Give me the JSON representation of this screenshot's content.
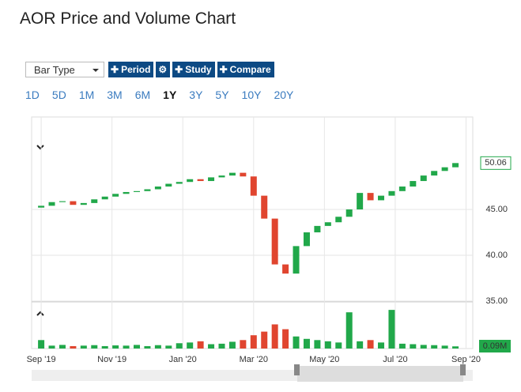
{
  "header": {
    "title": "AOR Price and Volume Chart"
  },
  "controls": {
    "bar_type": "Bar Type",
    "buttons": [
      "Period",
      "Study",
      "Compare"
    ],
    "ranges": [
      "1D",
      "5D",
      "1M",
      "3M",
      "6M",
      "1Y",
      "3Y",
      "5Y",
      "10Y",
      "20Y"
    ],
    "active_range_index": 5
  },
  "chart_data": {
    "type": "candlestick",
    "x": [
      0,
      0.3,
      0.6,
      0.9,
      1.2,
      1.5,
      1.8,
      2.1,
      2.4,
      2.7,
      3.0,
      3.3,
      3.6,
      3.9,
      4.2,
      4.5,
      4.8,
      5.1,
      5.4,
      5.7,
      6.0,
      6.3,
      6.6,
      6.9,
      7.2,
      7.5,
      7.8,
      8.1,
      8.4,
      8.7,
      9.0,
      9.3,
      9.6,
      9.9,
      10.2,
      10.5,
      10.8,
      11.1,
      11.4,
      11.7
    ],
    "open": [
      45.2,
      45.4,
      45.8,
      45.9,
      45.5,
      45.7,
      46.1,
      46.4,
      46.7,
      46.9,
      47.0,
      47.2,
      47.5,
      47.8,
      48.0,
      48.3,
      48.1,
      48.5,
      48.7,
      49.0,
      48.6,
      46.5,
      44.0,
      39.0,
      38.0,
      41.0,
      42.5,
      43.2,
      43.6,
      44.2,
      45.0,
      46.8,
      46.0,
      46.5,
      47.0,
      47.5,
      48.1,
      48.7,
      49.2,
      49.6
    ],
    "close": [
      45.4,
      45.8,
      45.9,
      45.5,
      45.7,
      46.1,
      46.4,
      46.7,
      46.9,
      47.0,
      47.2,
      47.5,
      47.8,
      48.0,
      48.3,
      48.1,
      48.5,
      48.7,
      49.0,
      48.6,
      46.5,
      44.0,
      39.0,
      38.0,
      41.0,
      42.5,
      43.2,
      43.6,
      44.2,
      45.0,
      46.8,
      46.0,
      46.5,
      47.0,
      47.5,
      48.1,
      48.7,
      49.2,
      49.6,
      50.06
    ],
    "volume": [
      0.35,
      0.12,
      0.15,
      0.1,
      0.12,
      0.14,
      0.1,
      0.13,
      0.12,
      0.15,
      0.1,
      0.14,
      0.12,
      0.22,
      0.25,
      0.3,
      0.18,
      0.2,
      0.28,
      0.35,
      0.55,
      0.7,
      1.0,
      0.8,
      0.5,
      0.4,
      0.35,
      0.3,
      0.25,
      1.5,
      0.3,
      0.35,
      0.25,
      1.6,
      0.2,
      0.18,
      0.15,
      0.14,
      0.12,
      0.09
    ],
    "up_color": "#21a84a",
    "down_color": "#e0452f",
    "xlim": [
      -0.27,
      12.19
    ],
    "xticks": [
      {
        "value": 0,
        "label": "Sep '19"
      },
      {
        "value": 2,
        "label": "Nov '19"
      },
      {
        "value": 4,
        "label": "Jan '20"
      },
      {
        "value": 6,
        "label": "Mar '20"
      },
      {
        "value": 8,
        "label": "May '20"
      },
      {
        "value": 10,
        "label": "Jul '20"
      },
      {
        "value": 12,
        "label": "Sep '20"
      }
    ],
    "ylim": [
      34.91,
      55.09
    ],
    "yticks": [
      {
        "value": 35,
        "label": "35.00"
      },
      {
        "value": 40,
        "label": "40.00"
      },
      {
        "value": 45,
        "label": "45.00"
      }
    ],
    "vol_ylim": [
      0,
      1.8
    ],
    "last_close_label": "50.06",
    "last_volume_label": "0.09M",
    "grid": true
  }
}
